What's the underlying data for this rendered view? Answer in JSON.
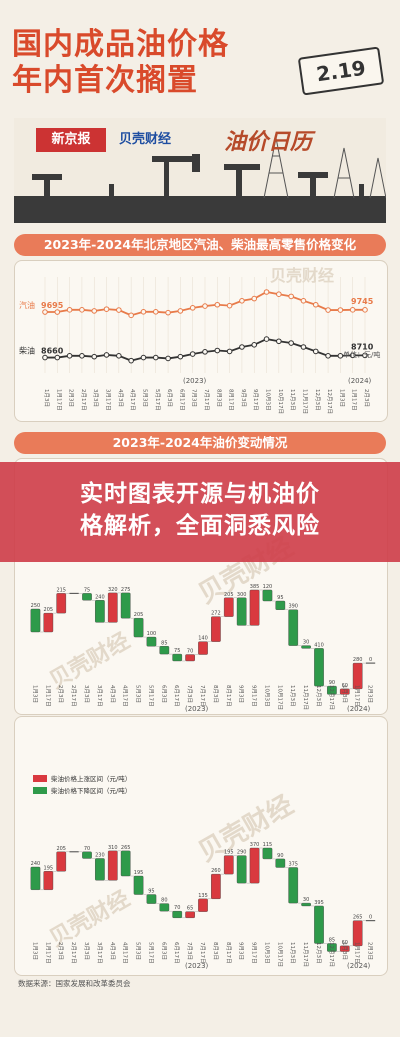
{
  "hero": {
    "title_line1": "国内成品油价格",
    "title_line2": "年内首次搁置",
    "date": "2.19",
    "logo_xinjingbao": "新京报",
    "logo_beike": "贝壳财经",
    "calendar": "油价日历"
  },
  "overlay": {
    "line1": "实时图表开源与机油价",
    "line2": "格解析，全面洞悉风险"
  },
  "source": "数据来源：国家发展和改革委员会",
  "colors": {
    "red": "#d9393f",
    "green": "#2e9a4a",
    "gasoline": "#e87b4a",
    "diesel": "#333333",
    "banner": "#e97b59"
  },
  "chart_data": [
    {
      "type": "line",
      "title": "2023年-2024年北京地区汽油、柴油最高零售价格变化",
      "unit_label": "单位：元/吨",
      "year_labels": [
        "(2023)",
        "(2024)"
      ],
      "x": [
        "1月3日",
        "1月17日",
        "2月3日",
        "2月17日",
        "3月3日",
        "3月17日",
        "4月3日",
        "4月17日",
        "5月3日",
        "5月17日",
        "6月3日",
        "6月17日",
        "7月3日",
        "7月17日",
        "8月3日",
        "8月17日",
        "9月3日",
        "9月17日",
        "10月3日",
        "10月17日",
        "11月3日",
        "11月17日",
        "12月3日",
        "12月17日",
        "1月3日",
        "1月17日",
        "2月3日"
      ],
      "series": [
        {
          "name": "汽油",
          "start_label": "9695",
          "end_label": "9745",
          "values": [
            9695,
            9695,
            9745,
            9745,
            9720,
            9760,
            9740,
            9620,
            9700,
            9700,
            9680,
            9720,
            9790,
            9830,
            9860,
            9840,
            9950,
            10000,
            10150,
            10100,
            10050,
            9950,
            9860,
            9740,
            9740,
            9745,
            9745
          ]
        },
        {
          "name": "柴油",
          "start_label": "8660",
          "end_label": "8710",
          "values": [
            8660,
            8660,
            8700,
            8700,
            8680,
            8720,
            8700,
            8590,
            8660,
            8660,
            8640,
            8680,
            8740,
            8790,
            8820,
            8800,
            8900,
            8950,
            9080,
            9030,
            8990,
            8900,
            8800,
            8700,
            8700,
            8710,
            8710
          ]
        }
      ]
    },
    {
      "type": "bar",
      "title": "2023年-2024年油价变动情况",
      "year_labels": [
        "(2023)",
        "(2024)"
      ],
      "categories": [
        "1月3日",
        "1月17日",
        "2月3日",
        "2月17日",
        "3月3日",
        "3月17日",
        "4月3日",
        "4月17日",
        "5月3日",
        "5月17日",
        "6月3日",
        "6月17日",
        "7月3日",
        "7月17日",
        "8月3日",
        "8月17日",
        "9月3日",
        "9月17日",
        "10月3日",
        "10月17日",
        "11月3日",
        "11月17日",
        "12月3日",
        "12月17日",
        "1月3日",
        "1月17日",
        "2月3日"
      ],
      "values": [
        -250,
        205,
        215,
        0,
        -75,
        -240,
        320,
        -275,
        -205,
        -100,
        -85,
        -75,
        70,
        140,
        272,
        205,
        -300,
        385,
        -120,
        -95,
        -390,
        -30,
        -410,
        -90,
        60,
        280,
        0
      ],
      "value_labels": [
        "250",
        "205",
        "215",
        "",
        "75",
        "240",
        "320",
        "275",
        "205",
        "100",
        "85",
        "75",
        "70",
        "140",
        "272",
        "205",
        "300",
        "385",
        "120",
        "95",
        "390",
        "30",
        "410",
        "90",
        "60",
        "280",
        "0"
      ]
    },
    {
      "type": "bar",
      "title": "",
      "legend": [
        "柴油价格上涨区间（元/吨）",
        "柴油价格下降区间（元/吨）"
      ],
      "year_labels": [
        "(2023)",
        "(2024)"
      ],
      "categories": [
        "1月3日",
        "1月17日",
        "2月3日",
        "2月17日",
        "3月3日",
        "3月17日",
        "4月3日",
        "4月17日",
        "5月3日",
        "5月17日",
        "6月3日",
        "6月17日",
        "7月3日",
        "7月17日",
        "8月3日",
        "8月17日",
        "9月3日",
        "9月17日",
        "10月3日",
        "10月17日",
        "11月3日",
        "11月17日",
        "12月3日",
        "12月17日",
        "1月3日",
        "1月17日",
        "2月3日"
      ],
      "values": [
        -240,
        195,
        205,
        0,
        -70,
        -230,
        310,
        -265,
        -195,
        -95,
        -80,
        -70,
        65,
        135,
        260,
        195,
        -290,
        370,
        -115,
        -90,
        -375,
        -30,
        -395,
        -85,
        60,
        265,
        0
      ],
      "value_labels": [
        "240",
        "195",
        "205",
        "",
        "70",
        "230",
        "310",
        "265",
        "195",
        "95",
        "80",
        "70",
        "65",
        "135",
        "260",
        "195",
        "290",
        "370",
        "115",
        "90",
        "375",
        "30",
        "395",
        "85",
        "60",
        "265",
        "0"
      ]
    }
  ]
}
